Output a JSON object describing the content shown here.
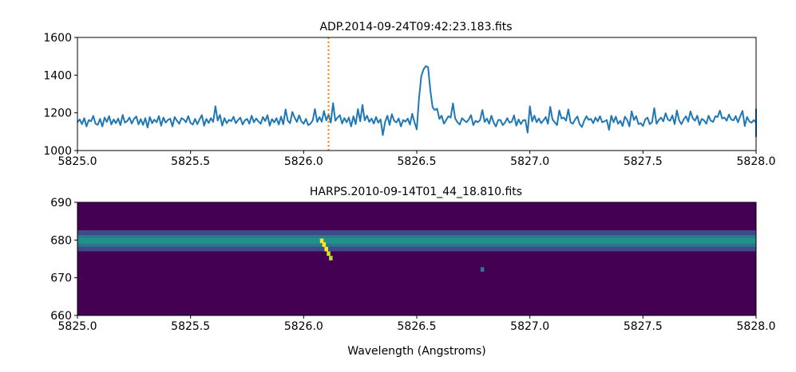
{
  "chart_data": [
    {
      "type": "line",
      "title": "ADP.2014-09-24T09:42:23.183.fits",
      "xlabel": "",
      "ylabel": "",
      "xlim": [
        5825.0,
        5828.0
      ],
      "ylim": [
        1000,
        1600
      ],
      "xticks": [
        5825.0,
        5825.5,
        5826.0,
        5826.5,
        5827.0,
        5827.5,
        5828.0
      ],
      "xtick_labels": [
        "5825.0",
        "5825.5",
        "5826.0",
        "5826.5",
        "5827.0",
        "5827.5",
        "5828.0"
      ],
      "yticks": [
        1000,
        1200,
        1400,
        1600
      ],
      "ytick_labels": [
        "1000",
        "1200",
        "1400",
        "1600"
      ],
      "grid": false,
      "series": [
        {
          "color": "#1f77b4",
          "x_start": 5825.0,
          "x_step": 0.01,
          "values": [
            1150,
            1165,
            1140,
            1172,
            1128,
            1162,
            1155,
            1184,
            1142,
            1137,
            1168,
            1128,
            1175,
            1152,
            1183,
            1138,
            1165,
            1145,
            1170,
            1135,
            1189,
            1148,
            1156,
            1175,
            1143,
            1168,
            1181,
            1139,
            1167,
            1136,
            1172,
            1122,
            1178,
            1145,
            1164,
            1150,
            1183,
            1132,
            1175,
            1148,
            1162,
            1169,
            1128,
            1178,
            1158,
            1142,
            1172,
            1165,
            1150,
            1183,
            1146,
            1138,
            1168,
            1140,
            1165,
            1188,
            1132,
            1168,
            1146,
            1172,
            1152,
            1235,
            1159,
            1189,
            1132,
            1172,
            1145,
            1163,
            1156,
            1179,
            1145,
            1162,
            1175,
            1138,
            1160,
            1168,
            1142,
            1185,
            1150,
            1170,
            1155,
            1142,
            1178,
            1156,
            1188,
            1132,
            1167,
            1149,
            1172,
            1138,
            1180,
            1139,
            1218,
            1158,
            1145,
            1205,
            1175,
            1152,
            1187,
            1155,
            1142,
            1168,
            1135,
            1142,
            1160,
            1220,
            1152,
            1178,
            1153,
            1210,
            1160,
            1190,
            1148,
            1252,
            1158,
            1175,
            1188,
            1143,
            1172,
            1150,
            1175,
            1128,
            1182,
            1140,
            1220,
            1155,
            1242,
            1160,
            1185,
            1152,
            1170,
            1143,
            1178,
            1148,
            1165,
            1082,
            1152,
            1185,
            1136,
            1193,
            1158,
            1149,
            1170,
            1128,
            1162,
            1153,
            1170,
            1138,
            1195,
            1150,
            1112,
            1278,
            1395,
            1430,
            1448,
            1442,
            1320,
            1230,
            1215,
            1222,
            1168,
            1185,
            1143,
            1162,
            1182,
            1175,
            1250,
            1170,
            1150,
            1138,
            1172,
            1160,
            1150,
            1165,
            1188,
            1135,
            1158,
            1150,
            1162,
            1215,
            1152,
            1170,
            1142,
            1185,
            1148,
            1128,
            1162,
            1162,
            1135,
            1148,
            1172,
            1148,
            1153,
            1187,
            1132,
            1165,
            1140,
            1160,
            1162,
            1095,
            1235,
            1155,
            1185,
            1150,
            1170,
            1145,
            1160,
            1178,
            1142,
            1232,
            1165,
            1150,
            1135,
            1213,
            1170,
            1175,
            1158,
            1218,
            1150,
            1142,
            1165,
            1181,
            1140,
            1125,
            1158,
            1182,
            1163,
            1168,
            1145,
            1175,
            1155,
            1182,
            1150,
            1155,
            1162,
            1110,
            1185,
            1150,
            1180,
            1142,
            1158,
            1130,
            1180,
            1163,
            1128,
            1208,
            1162,
            1182,
            1140,
            1145,
            1130,
            1165,
            1175,
            1140,
            1150,
            1225,
            1142,
            1162,
            1175,
            1155,
            1198,
            1165,
            1158,
            1186,
            1140,
            1213,
            1160,
            1140,
            1165,
            1182,
            1153,
            1208,
            1172,
            1158,
            1185,
            1136,
            1168,
            1160,
            1142,
            1185,
            1158,
            1152,
            1182,
            1178,
            1212,
            1170,
            1175,
            1158,
            1191,
            1165,
            1160,
            1183,
            1150,
            1182,
            1210,
            1130,
            1178,
            1155,
            1148,
            1162,
            1148,
            1138,
            1178,
            1150,
            1160,
            1150,
            1170,
            1185,
            1205,
            1215,
            1185,
            1172,
            1188,
            1198,
            1163,
            1190,
            1208,
            1220,
            1182,
            1195,
            1171,
            1178,
            1166,
            1150,
            1175,
            1138,
            1180,
            1150,
            1162,
            1142,
            1205,
            1140,
            1182,
            1150,
            1162,
            1180,
            1145,
            1130,
            1215,
            1148,
            1172,
            1095,
            1162,
            1140,
            1195,
            1152,
            1132,
            1158,
            1142,
            1125,
            1160,
            1185,
            1145,
            1135,
            1130,
            1152,
            1085,
            1165,
            1138,
            1113,
            1150,
            1180,
            1130,
            1075,
            1145,
            1160,
            1148,
            1168,
            1138,
            1155,
            1183,
            1160,
            1150,
            1175,
            1130,
            1162,
            1145,
            1158,
            1170,
            1140,
            1152,
            1145,
            1140,
            1120,
            1155,
            1140,
            1150,
            1160,
            1150,
            1162,
            1145,
            1150,
            1162,
            1175,
            1148,
            1165,
            1145,
            1155,
            1170,
            1160,
            1148,
            1150,
            1168,
            1142,
            1155,
            1175,
            1170,
            1183,
            1162,
            1160,
            1150,
            1165,
            1140,
            1152,
            1158,
            1160,
            1150,
            1170,
            1148,
            1162,
            1150,
            1140,
            1158,
            1155,
            1165,
            1145,
            1160,
            1150,
            1140,
            1140,
            1155,
            1148,
            1130,
            1112,
            1095,
            1084,
            1135,
            1168,
            1148,
            1152,
            1162,
            1165,
            1170,
            1175,
            1178,
            1180,
            1185,
            1190,
            1193,
            1195,
            1185,
            1155,
            1145,
            1160,
            1170,
            1150,
            1145,
            1155,
            1162,
            1150,
            1145,
            1160,
            1180,
            1160,
            1155,
            1138,
            1148,
            1160,
            1172,
            1165,
            1158,
            1145,
            1160,
            1170,
            1175,
            1178,
            1182,
            1175,
            1160,
            1150,
            1160,
            1155,
            1150,
            1170,
            1152,
            1140,
            1128,
            1125,
            1118,
            1112,
            1110
          ]
        }
      ],
      "vertical_line": {
        "x": 5826.11,
        "color": "#ff7f0e",
        "style": "dotted"
      }
    },
    {
      "type": "heatmap",
      "title": "HARPS.2010-09-14T01_44_18.810.fits",
      "xlabel": "Wavelength (Angstroms)",
      "ylabel": "",
      "xlim": [
        5825.0,
        5828.0
      ],
      "ylim": [
        660,
        690
      ],
      "xticks": [
        5825.0,
        5825.5,
        5826.0,
        5826.5,
        5827.0,
        5827.5,
        5828.0
      ],
      "xtick_labels": [
        "5825.0",
        "5825.5",
        "5826.0",
        "5826.5",
        "5827.0",
        "5827.5",
        "5828.0"
      ],
      "yticks": [
        660,
        670,
        680,
        690
      ],
      "ytick_labels": [
        "660",
        "670",
        "680",
        "690"
      ],
      "colormap": "viridis",
      "background_color": "#440154",
      "band": {
        "center_y": 679.8,
        "rows": [
          {
            "y": [
              677.0,
              678.2
            ],
            "color": "#3d4b89"
          },
          {
            "y": [
              678.2,
              679.0
            ],
            "color": "#2a788e"
          },
          {
            "y": [
              679.0,
              680.6
            ],
            "color": "#21918c"
          },
          {
            "y": [
              680.6,
              681.4
            ],
            "color": "#2a788e"
          },
          {
            "y": [
              681.4,
              682.6
            ],
            "color": "#3d4b89"
          }
        ]
      },
      "hot_pixels": [
        {
          "x": 5826.08,
          "y": 679.8,
          "color": "#fde725"
        },
        {
          "x": 5826.09,
          "y": 678.8,
          "color": "#fde725"
        },
        {
          "x": 5826.1,
          "y": 677.6,
          "color": "#fde725"
        },
        {
          "x": 5826.11,
          "y": 676.4,
          "color": "#d2e21b"
        },
        {
          "x": 5826.12,
          "y": 675.2,
          "color": "#b5de2b"
        },
        {
          "x": 5826.79,
          "y": 672.2,
          "color": "#2a788e"
        }
      ]
    }
  ]
}
